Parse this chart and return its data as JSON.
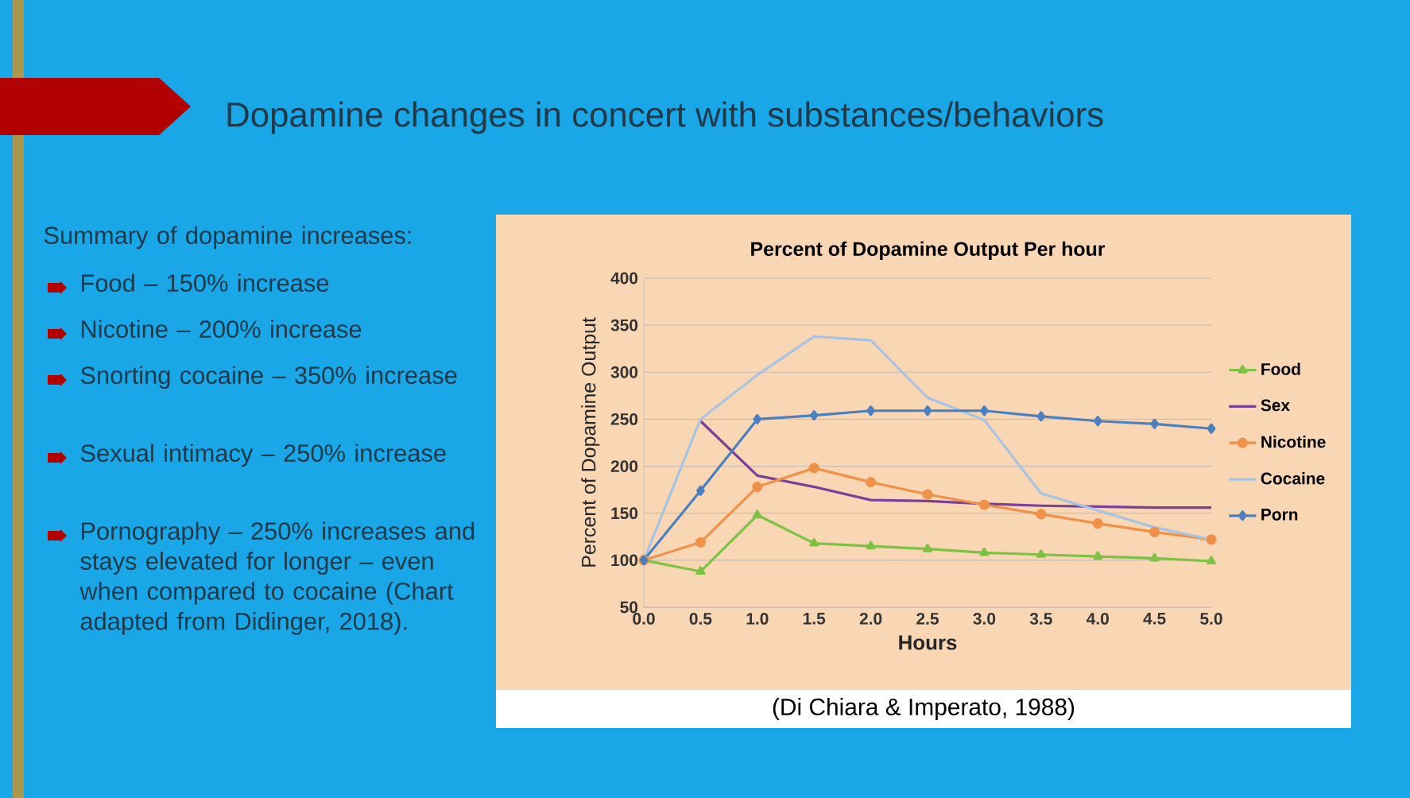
{
  "chart_data": {
    "type": "line",
    "title": "Dopamine changes in concert with substances/behaviors",
    "subtitle": "Percent of Dopamine Output Per hour",
    "xlabel": "Hours",
    "ylabel": "Percent of Dopamine Output",
    "x": [
      0,
      0.5,
      1,
      1.5,
      2,
      2.5,
      3,
      3.5,
      4,
      4.5,
      5
    ],
    "series": [
      {
        "name": "Food",
        "color": "#7dc242",
        "marker": "triangle",
        "values": [
          100,
          88,
          148,
          118,
          115,
          112,
          108,
          106,
          104,
          102,
          99
        ]
      },
      {
        "name": "Sex",
        "color": "#7b3f98",
        "marker": "none",
        "values": [
          null,
          248,
          190,
          178,
          164,
          163,
          160,
          158,
          157,
          156,
          156
        ]
      },
      {
        "name": "Nicotine",
        "color": "#f0914a",
        "marker": "circle",
        "values": [
          100,
          119,
          178,
          198,
          183,
          170,
          159,
          149,
          139,
          130,
          122
        ]
      },
      {
        "name": "Cocaine",
        "color": "#a9c4e0",
        "marker": "none",
        "values": [
          100,
          250,
          297,
          338,
          334,
          273,
          249,
          171,
          153,
          135,
          122
        ]
      },
      {
        "name": "Porn",
        "color": "#4a7fc0",
        "marker": "diamond",
        "values": [
          100,
          174,
          250,
          254,
          259,
          259,
          259,
          253,
          248,
          245,
          240
        ]
      }
    ],
    "xlim": [
      0,
      5
    ],
    "ylim": [
      50,
      400
    ],
    "xticks": [
      {
        "value": 0,
        "label": "0.0"
      },
      {
        "value": 0.5,
        "label": "0.5"
      },
      {
        "value": 1,
        "label": "1.0"
      },
      {
        "value": 1.5,
        "label": "1.5"
      },
      {
        "value": 2,
        "label": "2.0"
      },
      {
        "value": 2.5,
        "label": "2.5"
      },
      {
        "value": 3,
        "label": "3.0"
      },
      {
        "value": 3.5,
        "label": "3.5"
      },
      {
        "value": 4,
        "label": "4.0"
      },
      {
        "value": 4.5,
        "label": "4.5"
      },
      {
        "value": 5,
        "label": "5.0"
      }
    ],
    "yticks": [
      50,
      100,
      150,
      200,
      250,
      300,
      350,
      400
    ],
    "grid": "y",
    "legend": "right",
    "annotations": [
      "Summary of dopamine increases:",
      "Food – 150% increase",
      "Nicotine – 200% increase",
      "Snorting cocaine – 350% increase",
      "Sexual intimacy – 250% increase",
      "Pornography – 250% increases and stays elevated for longer – even when compared to cocaine (Chart adapted from Didinger, 2018).",
      "(Di Chiara & Imperato, 1988)"
    ]
  }
}
